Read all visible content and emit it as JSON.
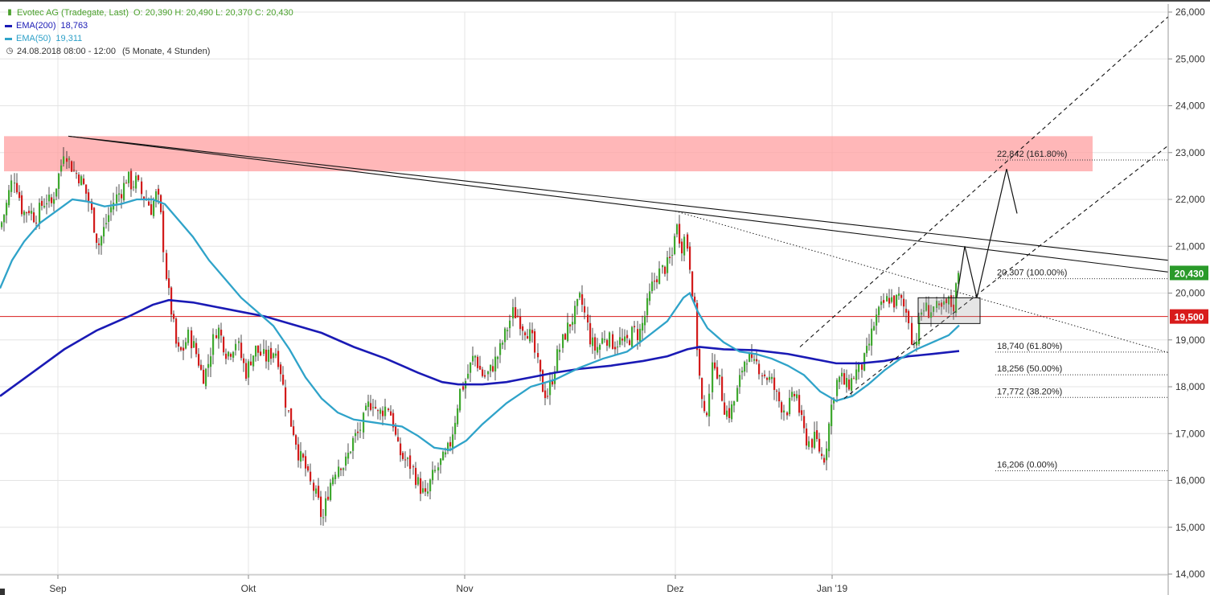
{
  "legend": {
    "title": "Evotec AG (Tradegate, Last)",
    "ohlc": "O: 20,390  H: 20,490  L: 20,370  C: 20,430",
    "ema200_label": "EMA(200)",
    "ema200_value": "18,763",
    "ema50_label": "EMA(50)",
    "ema50_value": "19,311",
    "date_range": "24.08.2018 08:00 - 12:00",
    "span": "(5 Monate, 4 Stunden)",
    "icons": {
      "price": "candlestick-icon",
      "time": "clock-icon"
    }
  },
  "colors": {
    "up": "#3fa82f",
    "down": "#d21b1b",
    "ema200": "#1a1ab5",
    "ema50": "#2fa3c9",
    "resistance_zone": "#ff9fa0",
    "support_line": "#d81b1b",
    "price_badge": "#2a9a2a",
    "level_badge": "#d81b1b"
  },
  "chart_data": {
    "type": "candlestick",
    "instrument": "Evotec AG (Tradegate, Last)",
    "ylim": [
      13.9,
      26.2
    ],
    "y_ticks": [
      "14,000",
      "15,000",
      "16,000",
      "17,000",
      "18,000",
      "19,000",
      "20,000",
      "21,000",
      "22,000",
      "23,000",
      "24,000",
      "25,000",
      "26,000"
    ],
    "y_tick_values": [
      14,
      15,
      16,
      17,
      18,
      19,
      20,
      21,
      22,
      23,
      24,
      25,
      26
    ],
    "x_month_labels": [
      "Sep",
      "Okt",
      "Nov",
      "Dez",
      "Jan '19"
    ],
    "close_path": [
      [
        0,
        21.4
      ],
      [
        7,
        21.8
      ],
      [
        12,
        22.2
      ],
      [
        17,
        22.5
      ],
      [
        22,
        22.2
      ],
      [
        28,
        21.7
      ],
      [
        36,
        21.8
      ],
      [
        44,
        21.6
      ],
      [
        52,
        21.9
      ],
      [
        58,
        22.0
      ],
      [
        64,
        21.9
      ],
      [
        70,
        22.3
      ],
      [
        76,
        22.7
      ],
      [
        80,
        23.1
      ],
      [
        86,
        22.8
      ],
      [
        92,
        22.6
      ],
      [
        98,
        22.5
      ],
      [
        104,
        22.3
      ],
      [
        110,
        22.0
      ],
      [
        116,
        21.5
      ],
      [
        122,
        21.0
      ],
      [
        128,
        21.3
      ],
      [
        134,
        21.6
      ],
      [
        140,
        21.9
      ],
      [
        146,
        22.1
      ],
      [
        152,
        22.2
      ],
      [
        158,
        22.5
      ],
      [
        164,
        22.3
      ],
      [
        170,
        22.4
      ],
      [
        176,
        22.1
      ],
      [
        182,
        22.0
      ],
      [
        188,
        21.8
      ],
      [
        194,
        22.1
      ],
      [
        199,
        21.9
      ],
      [
        203,
        21.1
      ],
      [
        207,
        20.3
      ],
      [
        211,
        19.8
      ],
      [
        215,
        19.4
      ],
      [
        219,
        18.9
      ],
      [
        223,
        18.7
      ],
      [
        228,
        18.8
      ],
      [
        234,
        19.1
      ],
      [
        240,
        18.9
      ],
      [
        246,
        18.6
      ],
      [
        252,
        18.2
      ],
      [
        258,
        18.4
      ],
      [
        264,
        18.9
      ],
      [
        270,
        19.3
      ],
      [
        276,
        19.0
      ],
      [
        282,
        18.7
      ],
      [
        288,
        18.8
      ],
      [
        294,
        19.0
      ],
      [
        300,
        18.6
      ],
      [
        306,
        18.3
      ],
      [
        312,
        18.6
      ],
      [
        318,
        18.8
      ],
      [
        324,
        18.7
      ],
      [
        330,
        18.6
      ],
      [
        336,
        18.7
      ],
      [
        342,
        18.8
      ],
      [
        348,
        18.5
      ],
      [
        354,
        17.8
      ],
      [
        360,
        17.3
      ],
      [
        366,
        17.0
      ],
      [
        372,
        16.5
      ],
      [
        378,
        16.4
      ],
      [
        384,
        16.0
      ],
      [
        390,
        15.8
      ],
      [
        396,
        15.5
      ],
      [
        401,
        15.1
      ],
      [
        405,
        15.5
      ],
      [
        410,
        15.9
      ],
      [
        416,
        16.2
      ],
      [
        422,
        16.4
      ],
      [
        428,
        16.3
      ],
      [
        434,
        16.6
      ],
      [
        440,
        16.9
      ],
      [
        446,
        17.0
      ],
      [
        452,
        17.3
      ],
      [
        458,
        17.6
      ],
      [
        464,
        17.7
      ],
      [
        470,
        17.4
      ],
      [
        476,
        17.5
      ],
      [
        482,
        17.6
      ],
      [
        488,
        17.3
      ],
      [
        494,
        16.7
      ],
      [
        500,
        16.5
      ],
      [
        506,
        16.4
      ],
      [
        512,
        16.3
      ],
      [
        518,
        16.0
      ],
      [
        524,
        15.8
      ],
      [
        530,
        15.6
      ],
      [
        536,
        16.0
      ],
      [
        542,
        16.2
      ],
      [
        548,
        16.4
      ],
      [
        554,
        16.5
      ],
      [
        560,
        16.8
      ],
      [
        566,
        17.3
      ],
      [
        572,
        17.9
      ],
      [
        578,
        18.1
      ],
      [
        584,
        18.4
      ],
      [
        590,
        18.7
      ],
      [
        596,
        18.4
      ],
      [
        602,
        18.2
      ],
      [
        608,
        18.3
      ],
      [
        614,
        18.5
      ],
      [
        620,
        18.7
      ],
      [
        626,
        19.0
      ],
      [
        632,
        19.3
      ],
      [
        638,
        19.6
      ],
      [
        644,
        19.5
      ],
      [
        650,
        19.3
      ],
      [
        656,
        19.2
      ],
      [
        662,
        19.0
      ],
      [
        668,
        18.5
      ],
      [
        674,
        18.0
      ],
      [
        680,
        17.8
      ],
      [
        686,
        18.1
      ],
      [
        692,
        18.6
      ],
      [
        698,
        18.9
      ],
      [
        704,
        19.2
      ],
      [
        710,
        19.4
      ],
      [
        716,
        19.6
      ],
      [
        722,
        19.9
      ],
      [
        728,
        19.5
      ],
      [
        734,
        19.0
      ],
      [
        740,
        18.8
      ],
      [
        746,
        18.9
      ],
      [
        752,
        19.1
      ],
      [
        758,
        19.0
      ],
      [
        764,
        18.9
      ],
      [
        770,
        19.0
      ],
      [
        776,
        18.9
      ],
      [
        782,
        19.0
      ],
      [
        788,
        19.2
      ],
      [
        794,
        19.1
      ],
      [
        800,
        19.4
      ],
      [
        806,
        19.8
      ],
      [
        812,
        20.2
      ],
      [
        818,
        20.4
      ],
      [
        824,
        20.5
      ],
      [
        830,
        20.6
      ],
      [
        836,
        20.8
      ],
      [
        840,
        21.5
      ],
      [
        844,
        21.3
      ],
      [
        848,
        21.0
      ],
      [
        852,
        21.2
      ],
      [
        856,
        20.9
      ],
      [
        860,
        20.2
      ],
      [
        864,
        19.6
      ],
      [
        868,
        18.6
      ],
      [
        872,
        17.8
      ],
      [
        876,
        17.3
      ],
      [
        880,
        17.6
      ],
      [
        884,
        18.2
      ],
      [
        888,
        18.6
      ],
      [
        892,
        18.3
      ],
      [
        896,
        18.0
      ],
      [
        900,
        17.6
      ],
      [
        906,
        17.4
      ],
      [
        912,
        17.6
      ],
      [
        918,
        18.0
      ],
      [
        924,
        18.5
      ],
      [
        930,
        18.7
      ],
      [
        936,
        18.4
      ],
      [
        942,
        18.5
      ],
      [
        948,
        18.3
      ],
      [
        954,
        18.2
      ],
      [
        960,
        18.1
      ],
      [
        966,
        17.8
      ],
      [
        972,
        17.6
      ],
      [
        978,
        17.5
      ],
      [
        984,
        17.7
      ],
      [
        990,
        17.9
      ],
      [
        996,
        17.3
      ],
      [
        1002,
        16.9
      ],
      [
        1008,
        16.8
      ],
      [
        1014,
        16.9
      ],
      [
        1020,
        16.6
      ],
      [
        1024,
        16.4
      ],
      [
        1028,
        16.8
      ],
      [
        1032,
        17.3
      ],
      [
        1036,
        17.8
      ],
      [
        1040,
        18.1
      ],
      [
        1046,
        18.2
      ],
      [
        1052,
        18.0
      ],
      [
        1058,
        18.1
      ],
      [
        1064,
        18.3
      ],
      [
        1070,
        18.4
      ],
      [
        1076,
        18.6
      ],
      [
        1082,
        19.0
      ],
      [
        1088,
        19.4
      ],
      [
        1094,
        19.6
      ],
      [
        1100,
        19.8
      ],
      [
        1106,
        19.9
      ],
      [
        1112,
        19.8
      ],
      [
        1118,
        19.9
      ],
      [
        1124,
        19.7
      ],
      [
        1130,
        19.5
      ],
      [
        1134,
        19.0
      ],
      [
        1138,
        18.9
      ],
      [
        1142,
        19.3
      ],
      [
        1146,
        19.6
      ],
      [
        1150,
        19.7
      ],
      [
        1156,
        19.6
      ],
      [
        1162,
        19.7
      ],
      [
        1168,
        19.6
      ],
      [
        1174,
        19.7
      ],
      [
        1180,
        19.8
      ],
      [
        1186,
        19.7
      ],
      [
        1190,
        20.2
      ],
      [
        1194,
        20.43
      ]
    ],
    "series": [
      {
        "name": "EMA(200)",
        "last": 18.763,
        "points": [
          [
            0,
            17.8
          ],
          [
            40,
            18.3
          ],
          [
            80,
            18.8
          ],
          [
            120,
            19.2
          ],
          [
            160,
            19.5
          ],
          [
            190,
            19.75
          ],
          [
            210,
            19.85
          ],
          [
            240,
            19.8
          ],
          [
            270,
            19.7
          ],
          [
            300,
            19.6
          ],
          [
            330,
            19.5
          ],
          [
            360,
            19.35
          ],
          [
            400,
            19.15
          ],
          [
            440,
            18.85
          ],
          [
            480,
            18.6
          ],
          [
            520,
            18.3
          ],
          [
            550,
            18.1
          ],
          [
            570,
            18.05
          ],
          [
            600,
            18.05
          ],
          [
            630,
            18.1
          ],
          [
            660,
            18.2
          ],
          [
            690,
            18.3
          ],
          [
            720,
            18.38
          ],
          [
            760,
            18.45
          ],
          [
            800,
            18.55
          ],
          [
            830,
            18.65
          ],
          [
            855,
            18.8
          ],
          [
            870,
            18.85
          ],
          [
            900,
            18.8
          ],
          [
            940,
            18.78
          ],
          [
            980,
            18.7
          ],
          [
            1010,
            18.6
          ],
          [
            1040,
            18.5
          ],
          [
            1070,
            18.5
          ],
          [
            1100,
            18.55
          ],
          [
            1130,
            18.65
          ],
          [
            1160,
            18.7
          ],
          [
            1193,
            18.763
          ]
        ]
      },
      {
        "name": "EMA(50)",
        "last": 19.311,
        "points": [
          [
            0,
            20.1
          ],
          [
            15,
            20.7
          ],
          [
            30,
            21.1
          ],
          [
            50,
            21.5
          ],
          [
            70,
            21.75
          ],
          [
            90,
            22.0
          ],
          [
            110,
            21.95
          ],
          [
            130,
            21.85
          ],
          [
            150,
            21.9
          ],
          [
            170,
            22.0
          ],
          [
            190,
            22.0
          ],
          [
            205,
            21.9
          ],
          [
            220,
            21.6
          ],
          [
            240,
            21.2
          ],
          [
            260,
            20.7
          ],
          [
            280,
            20.3
          ],
          [
            300,
            19.9
          ],
          [
            320,
            19.6
          ],
          [
            340,
            19.3
          ],
          [
            360,
            18.8
          ],
          [
            380,
            18.2
          ],
          [
            400,
            17.75
          ],
          [
            420,
            17.45
          ],
          [
            440,
            17.3
          ],
          [
            460,
            17.25
          ],
          [
            480,
            17.2
          ],
          [
            500,
            17.15
          ],
          [
            520,
            16.95
          ],
          [
            540,
            16.7
          ],
          [
            560,
            16.65
          ],
          [
            580,
            16.85
          ],
          [
            600,
            17.2
          ],
          [
            630,
            17.65
          ],
          [
            660,
            18.0
          ],
          [
            690,
            18.15
          ],
          [
            720,
            18.4
          ],
          [
            750,
            18.6
          ],
          [
            780,
            18.75
          ],
          [
            800,
            19.0
          ],
          [
            830,
            19.4
          ],
          [
            850,
            19.9
          ],
          [
            858,
            20.0
          ],
          [
            868,
            19.6
          ],
          [
            880,
            19.25
          ],
          [
            900,
            18.95
          ],
          [
            920,
            18.75
          ],
          [
            940,
            18.7
          ],
          [
            960,
            18.6
          ],
          [
            980,
            18.45
          ],
          [
            1000,
            18.25
          ],
          [
            1020,
            17.9
          ],
          [
            1040,
            17.7
          ],
          [
            1060,
            17.8
          ],
          [
            1080,
            18.05
          ],
          [
            1100,
            18.35
          ],
          [
            1120,
            18.6
          ],
          [
            1140,
            18.8
          ],
          [
            1160,
            18.95
          ],
          [
            1180,
            19.1
          ],
          [
            1193,
            19.311
          ]
        ]
      }
    ],
    "current_price": "20,430",
    "current_price_value": 20.43,
    "support_level": "19,500",
    "support_level_value": 19.5,
    "resistance_zone": [
      22.6,
      23.35
    ],
    "fibonacci": [
      {
        "label": "22,842 (161.80%)",
        "value": 22.842
      },
      {
        "label": "20,307 (100.00%)",
        "value": 20.307
      },
      {
        "label": "18,740 (61.80%)",
        "value": 18.74
      },
      {
        "label": "18,256 (50.00%)",
        "value": 18.256
      },
      {
        "label": "17,772 (38.20%)",
        "value": 17.772
      },
      {
        "label": "16,206 (0.00%)",
        "value": 16.206
      }
    ],
    "trendlines": [
      {
        "style": "solid",
        "from": [
          85,
          23.35
        ],
        "to": [
          1453,
          20.45
        ]
      },
      {
        "style": "solid",
        "from": [
          85,
          23.35
        ],
        "to": [
          1453,
          20.7
        ]
      },
      {
        "style": "dotted",
        "from": [
          840,
          21.75
        ],
        "to": [
          1453,
          18.73
        ]
      },
      {
        "style": "dashed",
        "from": [
          995,
          18.85
        ],
        "to": [
          1453,
          25.9
        ]
      },
      {
        "style": "dashed",
        "from": [
          1050,
          17.75
        ],
        "to": [
          1453,
          23.15
        ]
      }
    ],
    "projection": [
      [
        1190,
        19.9
      ],
      [
        1200,
        21.0
      ],
      [
        1215,
        19.9
      ],
      [
        1252,
        22.65
      ],
      [
        1265,
        21.7
      ]
    ],
    "consolidation_box": {
      "x": [
        1142,
        1219
      ],
      "y": [
        19.35,
        19.9
      ]
    }
  }
}
